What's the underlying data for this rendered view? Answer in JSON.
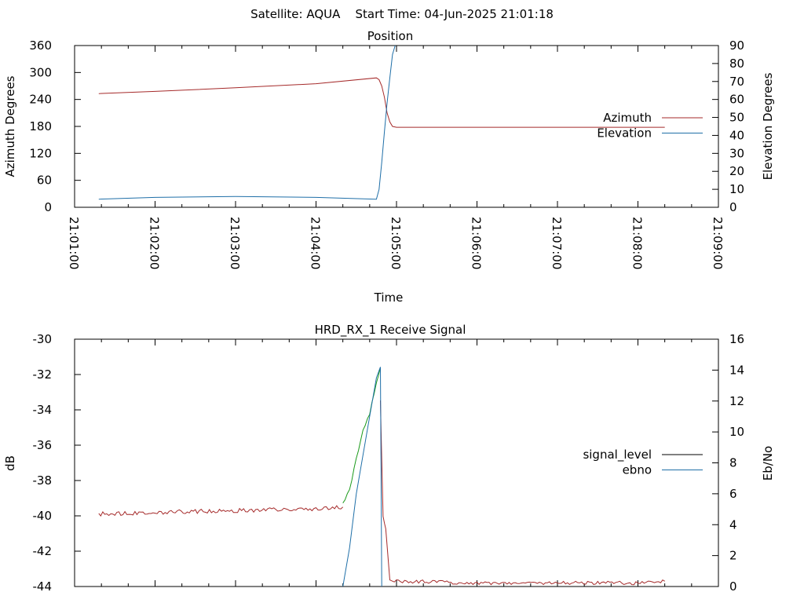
{
  "header": {
    "title": "Satellite: AQUA    Start Time: 04-Jun-2025 21:01:18"
  },
  "chart_data": [
    {
      "type": "line",
      "title": "Position",
      "xlabel": "Time",
      "ylabel": "Azimuth Degrees",
      "y2label": "Elevation Degrees",
      "x_ticks": [
        "21:01:00",
        "21:02:00",
        "21:03:00",
        "21:04:00",
        "21:05:00",
        "21:06:00",
        "21:07:00",
        "21:08:00",
        "21:09:00"
      ],
      "xlim": [
        "21:01:00",
        "21:09:00"
      ],
      "ylim": [
        0,
        360
      ],
      "y_ticks": [
        0,
        60,
        120,
        180,
        240,
        300,
        360
      ],
      "y2lim": [
        0,
        90
      ],
      "y2_ticks": [
        0,
        10,
        20,
        30,
        40,
        50,
        60,
        70,
        80,
        90
      ],
      "legend_position": "right",
      "series": [
        {
          "name": "Azimuth",
          "axis": "y",
          "color": "#a52a2a",
          "x": [
            "21:01:18",
            "21:02:00",
            "21:03:00",
            "21:04:00",
            "21:04:45",
            "21:04:47",
            "21:04:49",
            "21:04:51",
            "21:04:53",
            "21:04:55",
            "21:04:57",
            "21:05:00",
            "21:06:00",
            "21:07:00",
            "21:08:00",
            "21:08:20"
          ],
          "y": [
            253,
            258,
            266,
            275,
            288,
            284,
            270,
            245,
            210,
            190,
            180,
            178,
            178,
            178,
            178,
            178
          ]
        },
        {
          "name": "Elevation",
          "axis": "y2",
          "color": "#1f6fa8",
          "x": [
            "21:01:18",
            "21:02:00",
            "21:03:00",
            "21:04:00",
            "21:04:45",
            "21:04:47",
            "21:04:49",
            "21:04:51",
            "21:04:53",
            "21:04:55",
            "21:04:57",
            "21:04:59"
          ],
          "y": [
            4.5,
            5.5,
            6,
            5.5,
            4.5,
            10,
            25,
            42,
            58,
            72,
            85,
            90
          ]
        }
      ]
    },
    {
      "type": "line",
      "title": "HRD_RX_1 Receive Signal",
      "ylabel": "dB",
      "y2label": "Eb/No",
      "xlim": [
        "21:01:00",
        "21:09:00"
      ],
      "ylim": [
        -44,
        -30
      ],
      "y_ticks": [
        -44,
        -42,
        -40,
        -38,
        -36,
        -34,
        -32,
        -30
      ],
      "y2lim": [
        0,
        16
      ],
      "y2_ticks": [
        0,
        2,
        4,
        6,
        8,
        10,
        12,
        14,
        16
      ],
      "legend_position": "right",
      "legend": [
        {
          "name": "signal_level",
          "color": "#000000"
        },
        {
          "name": "ebno",
          "color": "#1f6fa8"
        }
      ],
      "series": [
        {
          "segment": "signal_low_before_pass",
          "axis": "y",
          "color": "#a52a2a",
          "noise": 0.12,
          "x": [
            "21:01:18",
            "21:02:00",
            "21:03:00",
            "21:04:00",
            "21:04:20"
          ],
          "y": [
            -39.9,
            -39.8,
            -39.7,
            -39.6,
            -39.5
          ]
        },
        {
          "segment": "signal_high_during_pass",
          "axis": "y",
          "color": "#1a9a1a",
          "noise": 0.08,
          "x": [
            "21:04:20",
            "21:04:25",
            "21:04:30",
            "21:04:35",
            "21:04:40",
            "21:04:45",
            "21:04:48"
          ],
          "y": [
            -39.3,
            -38.5,
            -36.8,
            -35.2,
            -34.2,
            -32.5,
            -31.6
          ]
        },
        {
          "segment": "signal_drop_after_pass",
          "axis": "y",
          "color": "#a52a2a",
          "noise": 0.1,
          "x": [
            "21:04:48",
            "21:04:50",
            "21:04:52",
            "21:04:55",
            "21:05:00",
            "21:06:00",
            "21:07:00",
            "21:08:00",
            "21:08:20"
          ],
          "y": [
            -33.5,
            -40.0,
            -40.8,
            -43.6,
            -43.7,
            -43.8,
            -43.8,
            -43.8,
            -43.7
          ]
        },
        {
          "name": "ebno",
          "axis": "y2",
          "color": "#1f6fa8",
          "x": [
            "21:04:20",
            "21:04:25",
            "21:04:30",
            "21:04:35",
            "21:04:40",
            "21:04:45",
            "21:04:48",
            "21:04:49"
          ],
          "y": [
            0,
            2.5,
            6,
            8.5,
            11,
            13.5,
            14.2,
            0
          ]
        }
      ]
    }
  ]
}
